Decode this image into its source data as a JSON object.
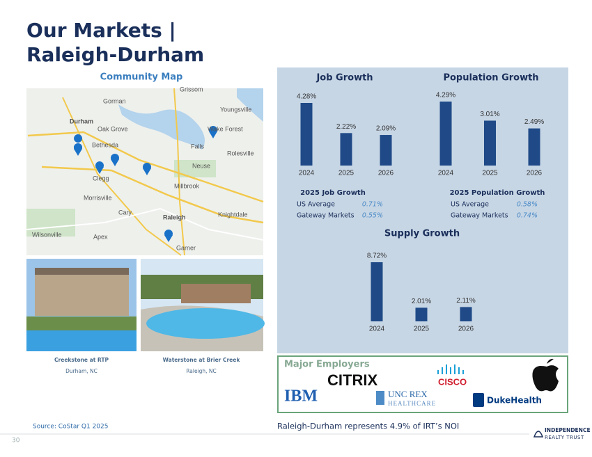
{
  "header": {
    "title_line1": "Our Markets |",
    "title_line2": "Raleigh-Durham"
  },
  "map": {
    "title": "Community Map",
    "labels": [
      "Grissom",
      "Gorman",
      "Youngsville",
      "Durham",
      "Oak Grove",
      "Bethesda",
      "Falls",
      "Wake Forest",
      "Rolesville",
      "Neuse",
      "Clegg",
      "Millbrook",
      "Morrisville",
      "Cary",
      "Raleigh",
      "Knightdale",
      "Apex",
      "Wilsonville",
      "Garner"
    ]
  },
  "properties": [
    {
      "name": "Creekstone at RTP",
      "location": "Durham, NC"
    },
    {
      "name": "Waterstone at Brier Creek",
      "location": "Raleigh, NC"
    }
  ],
  "chart_data": [
    {
      "type": "bar",
      "title": "Job Growth",
      "categories": [
        "2024",
        "2025",
        "2026"
      ],
      "values": [
        4.28,
        2.22,
        2.09
      ],
      "value_labels": [
        "4.28%",
        "2.22%",
        "2.09%"
      ],
      "color": "#1f4a87"
    },
    {
      "type": "bar",
      "title": "Population Growth",
      "categories": [
        "2024",
        "2025",
        "2026"
      ],
      "values": [
        4.29,
        3.01,
        2.49
      ],
      "value_labels": [
        "4.29%",
        "3.01%",
        "2.49%"
      ],
      "color": "#1f4a87"
    },
    {
      "type": "bar",
      "title": "Supply Growth",
      "categories": [
        "2024",
        "2025",
        "2026"
      ],
      "values": [
        8.72,
        2.01,
        2.11
      ],
      "value_labels": [
        "8.72%",
        "2.01%",
        "2.11%"
      ],
      "color": "#1f4a87"
    }
  ],
  "comparisons": [
    {
      "title": "2025 Job Growth",
      "rows": [
        [
          "US Average",
          "0.71%"
        ],
        [
          "Gateway Markets",
          "0.55%"
        ]
      ]
    },
    {
      "title": "2025 Population Growth",
      "rows": [
        [
          "US Average",
          "0.58%"
        ],
        [
          "Gateway Markets",
          "0.74%"
        ]
      ]
    }
  ],
  "employers": {
    "title": "Major Employers",
    "logos": [
      "CITRIX",
      "CISCO",
      "IBM",
      "UNC REX",
      "HEALTHCARE",
      "DukeHealth"
    ]
  },
  "footer": {
    "source": "Source: CoStar Q1 2025",
    "note": "Raleigh-Durham represents 4.9% of IRT’s NOI",
    "page": "30",
    "logo_line1": "INDEPENDENCE",
    "logo_line2": "REALTY TRUST"
  }
}
